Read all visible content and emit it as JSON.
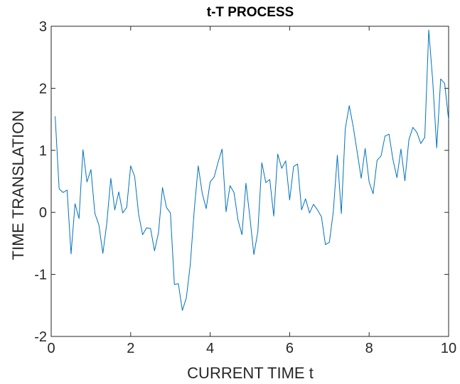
{
  "chart_data": {
    "type": "line",
    "title": "t-T PROCESS",
    "xlabel": "CURRENT TIME t",
    "ylabel": "TIME TRANSLATION",
    "xlim": [
      0,
      10
    ],
    "ylim": [
      -2,
      3
    ],
    "xticks": [
      0,
      2,
      4,
      6,
      8,
      10
    ],
    "yticks": [
      -2,
      -1,
      0,
      1,
      2,
      3
    ],
    "xtick_labels": [
      "0",
      "2",
      "4",
      "6",
      "8",
      "10"
    ],
    "ytick_labels": [
      "-2",
      "-1",
      "0",
      "1",
      "2",
      "3"
    ],
    "grid": false,
    "line_color": "#0072bd",
    "axis_color": "#262626",
    "series": [
      {
        "x": [
          0.1,
          0.2,
          0.3,
          0.4,
          0.5,
          0.6,
          0.7,
          0.8,
          0.9,
          1.0,
          1.1,
          1.2,
          1.3,
          1.4,
          1.5,
          1.6,
          1.7,
          1.8,
          1.9,
          2.0,
          2.1,
          2.2,
          2.3,
          2.4,
          2.5,
          2.6,
          2.7,
          2.8,
          2.9,
          3.0,
          3.1,
          3.2,
          3.3,
          3.4,
          3.5,
          3.6,
          3.7,
          3.8,
          3.9,
          4.0,
          4.1,
          4.2,
          4.3,
          4.4,
          4.5,
          4.6,
          4.7,
          4.8,
          4.9,
          5.0,
          5.1,
          5.2,
          5.3,
          5.4,
          5.5,
          5.6,
          5.7,
          5.8,
          5.9,
          6.0,
          6.1,
          6.2,
          6.3,
          6.4,
          6.5,
          6.6,
          6.7,
          6.8,
          6.9,
          7.0,
          7.1,
          7.2,
          7.3,
          7.4,
          7.5,
          7.6,
          7.7,
          7.8,
          7.9,
          8.0,
          8.1,
          8.2,
          8.3,
          8.4,
          8.5,
          8.6,
          8.7,
          8.8,
          8.9,
          9.0,
          9.1,
          9.2,
          9.3,
          9.4,
          9.5,
          9.6,
          9.7,
          9.8,
          9.9,
          10.0
        ],
        "y": [
          1.55,
          0.38,
          0.32,
          0.36,
          -0.67,
          0.14,
          -0.1,
          1.01,
          0.49,
          0.69,
          -0.02,
          -0.2,
          -0.66,
          -0.17,
          0.55,
          0.04,
          0.33,
          -0.01,
          0.08,
          0.75,
          0.58,
          -0.03,
          -0.36,
          -0.25,
          -0.26,
          -0.62,
          -0.33,
          0.4,
          0.08,
          -0.01,
          -1.16,
          -1.15,
          -1.58,
          -1.38,
          -0.84,
          0.04,
          0.75,
          0.31,
          0.06,
          0.49,
          0.57,
          0.81,
          1.02,
          0.01,
          0.43,
          0.32,
          -0.12,
          -0.36,
          0.47,
          -0.08,
          -0.68,
          -0.31,
          0.8,
          0.48,
          0.53,
          -0.06,
          0.94,
          0.71,
          0.83,
          0.2,
          0.74,
          0.78,
          0.04,
          0.22,
          -0.01,
          0.13,
          0.04,
          -0.07,
          -0.52,
          -0.48,
          0.02,
          0.92,
          -0.02,
          1.35,
          1.72,
          1.38,
          0.97,
          0.55,
          1.03,
          0.49,
          0.3,
          0.84,
          0.91,
          1.23,
          1.26,
          0.85,
          0.56,
          1.02,
          0.51,
          1.17,
          1.37,
          1.29,
          1.11,
          1.21,
          2.94,
          2.12,
          1.04,
          2.15,
          2.08,
          1.49
        ]
      }
    ]
  }
}
